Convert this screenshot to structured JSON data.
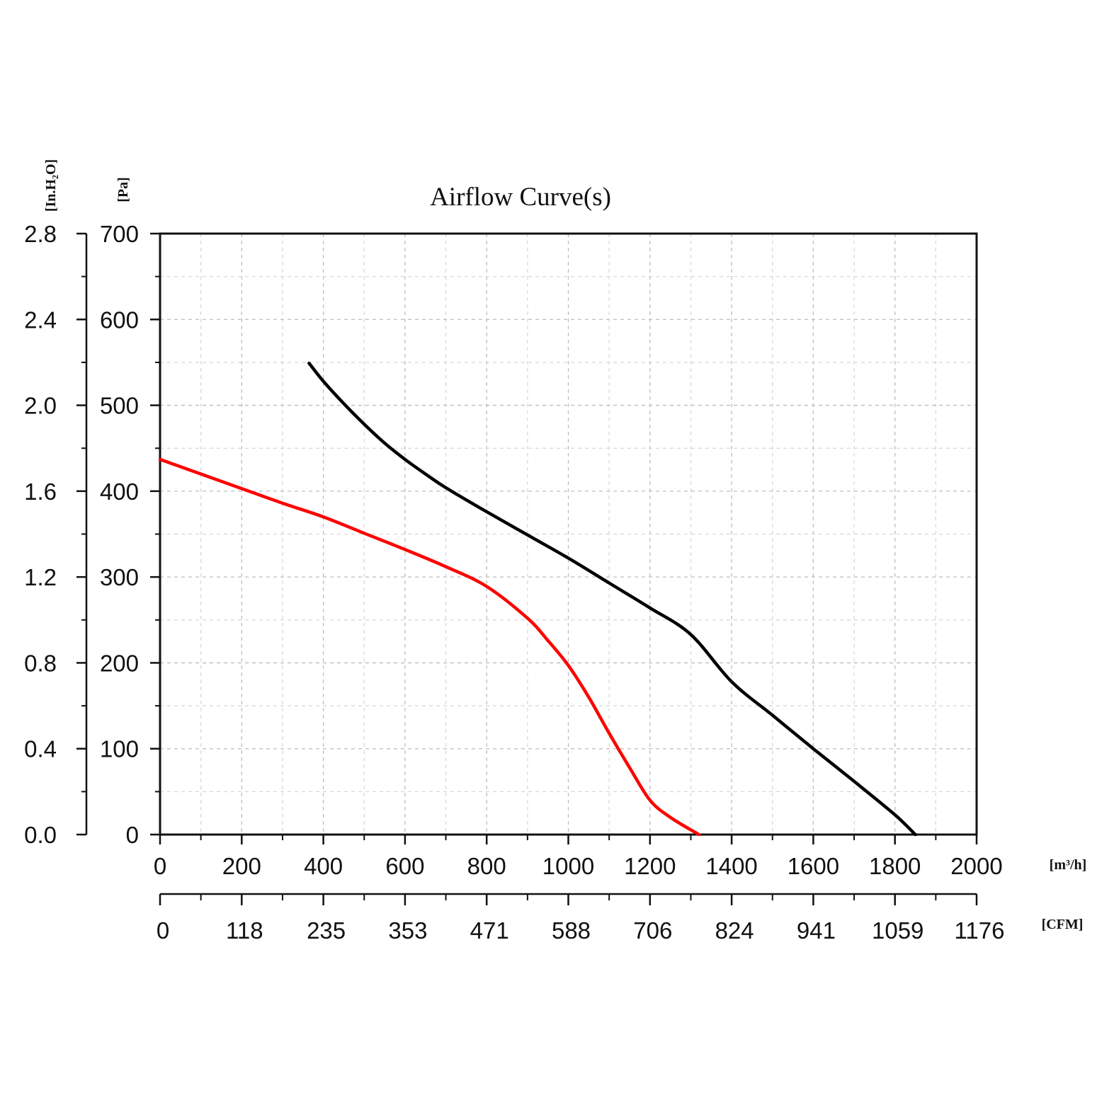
{
  "chart_data": {
    "type": "line",
    "title": "Airflow Curve(s)",
    "x_unit_label": "[m³/h]",
    "x2_unit_label": "[CFM]",
    "y_unit_label": "[Pa]",
    "y2_unit_label": "[In.H₂O]",
    "xlim": [
      0,
      2000
    ],
    "ylim": [
      0,
      700
    ],
    "y2lim": [
      0,
      2.8
    ],
    "x_ticks": [
      "0",
      "200",
      "400",
      "600",
      "800",
      "1000",
      "1200",
      "1400",
      "1600",
      "1800",
      "2000"
    ],
    "x2_ticks": [
      "0",
      "118",
      "235",
      "353",
      "471",
      "588",
      "706",
      "824",
      "941",
      "1059",
      "1176"
    ],
    "y_ticks": [
      "0",
      "100",
      "200",
      "300",
      "400",
      "500",
      "600",
      "700"
    ],
    "y2_ticks": [
      "0.0",
      "0.4",
      "0.8",
      "1.2",
      "1.6",
      "2.0",
      "2.4",
      "2.8"
    ],
    "grid": true,
    "series": [
      {
        "color": "#000000",
        "points": [
          [
            365,
            549
          ],
          [
            400,
            528
          ],
          [
            450,
            502
          ],
          [
            500,
            478
          ],
          [
            550,
            456
          ],
          [
            600,
            437
          ],
          [
            650,
            420
          ],
          [
            700,
            404
          ],
          [
            800,
            376
          ],
          [
            900,
            349
          ],
          [
            1000,
            322
          ],
          [
            1100,
            293
          ],
          [
            1200,
            264
          ],
          [
            1300,
            233
          ],
          [
            1400,
            178
          ],
          [
            1500,
            139
          ],
          [
            1600,
            100
          ],
          [
            1700,
            62
          ],
          [
            1800,
            23
          ],
          [
            1850,
            0
          ]
        ]
      },
      {
        "color": "#ff0000",
        "points": [
          [
            0,
            437
          ],
          [
            100,
            420
          ],
          [
            200,
            403
          ],
          [
            300,
            386
          ],
          [
            400,
            370
          ],
          [
            500,
            351
          ],
          [
            600,
            332
          ],
          [
            700,
            312
          ],
          [
            800,
            289
          ],
          [
            900,
            252
          ],
          [
            950,
            226
          ],
          [
            1000,
            197
          ],
          [
            1050,
            160
          ],
          [
            1100,
            118
          ],
          [
            1150,
            78
          ],
          [
            1200,
            40
          ],
          [
            1250,
            20
          ],
          [
            1320,
            0
          ]
        ]
      }
    ]
  }
}
